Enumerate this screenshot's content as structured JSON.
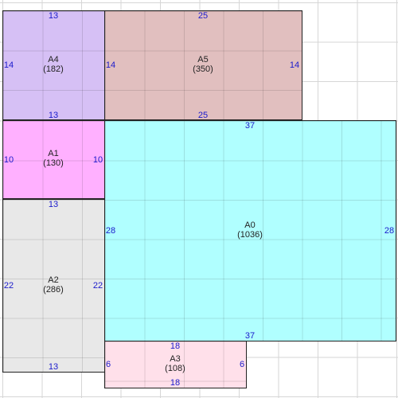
{
  "regions": [
    {
      "id": "A4",
      "name": "A4",
      "area": "(182)",
      "color": "#d6c0f5",
      "dims": {
        "top": "13",
        "bottom": "13",
        "left": "14",
        "right": "14"
      }
    },
    {
      "id": "A5",
      "name": "A5",
      "area": "(350)",
      "color": "#e1bfbf",
      "dims": {
        "top": "25",
        "bottom": "25",
        "left": "14",
        "right": "14"
      }
    },
    {
      "id": "A1",
      "name": "A1",
      "area": "(130)",
      "color": "#ffb0ff",
      "dims": {
        "top": "13",
        "bottom": "13",
        "left": "10",
        "right": "10"
      }
    },
    {
      "id": "A0",
      "name": "A0",
      "area": "(1036)",
      "color": "#b0ffff",
      "dims": {
        "top": "37",
        "bottom": "37",
        "left": "28",
        "right": "28"
      }
    },
    {
      "id": "A2",
      "name": "A2",
      "area": "(286)",
      "color": "#e8e8e8",
      "dims": {
        "top": "13",
        "bottom": "13",
        "left": "22",
        "right": "22"
      }
    },
    {
      "id": "A3",
      "name": "A3",
      "area": "(108)",
      "color": "#ffe0ea",
      "dims": {
        "top": "18",
        "bottom": "18",
        "left": "6",
        "right": "6"
      }
    }
  ]
}
